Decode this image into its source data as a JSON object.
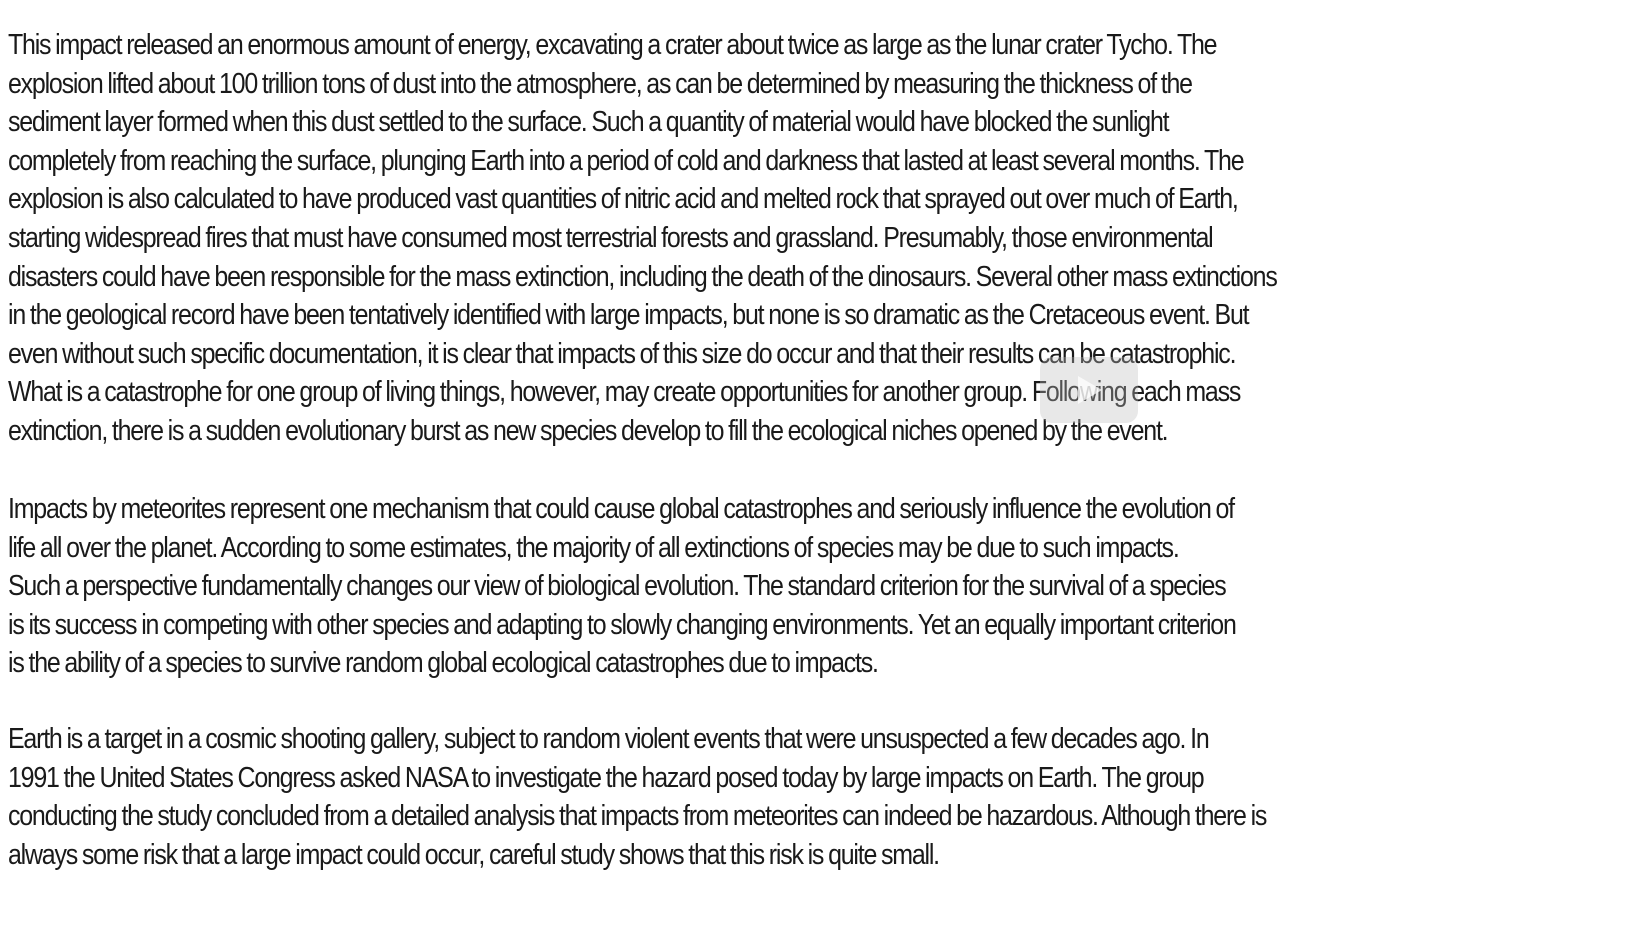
{
  "paragraphs": [
    {
      "lines": [
        "This impact released an enormous amount of energy, excavating a crater about twice as large as the lunar crater Tycho. The",
        "explosion lifted about 100 trillion tons of dust into the atmosphere, as can be determined by measuring the thickness of the",
        "sediment layer formed when this dust settled to the surface. Such a quantity of material would have blocked the sunlight",
        "completely from reaching the surface, plunging Earth into a period of cold and darkness that lasted at least several months. The",
        "explosion is also calculated to have produced vast quantities of nitric acid and melted rock that sprayed out over much of Earth,",
        "starting widespread fires that must have consumed most terrestrial forests and grassland. Presumably, those environmental",
        "disasters could have been responsible for the mass extinction, including the death of the dinosaurs. Several other mass extinctions",
        "in the geological record have been tentatively identified with large impacts, but none is so dramatic as the Cretaceous event. But",
        "even without such specific documentation, it is clear that impacts of this size do occur and that their results can be catastrophic.",
        "What is a catastrophe for one group of living things, however, may create opportunities for another group. Following each mass",
        "extinction, there is a sudden evolutionary burst as new species develop to fill the ecological niches opened by the event."
      ]
    },
    {
      "lines": [
        "Impacts by meteorites represent one mechanism that could cause global catastrophes and seriously influence the evolution of",
        "life all over the planet. According to some estimates, the majority of all extinctions of species may be due to such impacts.",
        "Such a perspective fundamentally changes our view of biological evolution. The standard criterion for the survival of a species",
        "is its success in competing with other species and adapting to slowly changing environments. Yet an equally important criterion",
        "is the ability of a species to survive random global ecological catastrophes due to impacts."
      ]
    },
    {
      "lines": [
        "Earth is a target in a cosmic shooting gallery, subject to random violent events that were unsuspected a few decades ago. In",
        "1991 the United States Congress asked NASA to investigate the hazard posed today by large impacts on Earth. The group",
        "conducting the study concluded from a detailed analysis that impacts from meteorites can indeed be hazardous. Although there is",
        "always some risk that a large impact could occur, careful study shows that this risk is quite small."
      ]
    }
  ],
  "overlay": {
    "icon": "play-icon"
  }
}
